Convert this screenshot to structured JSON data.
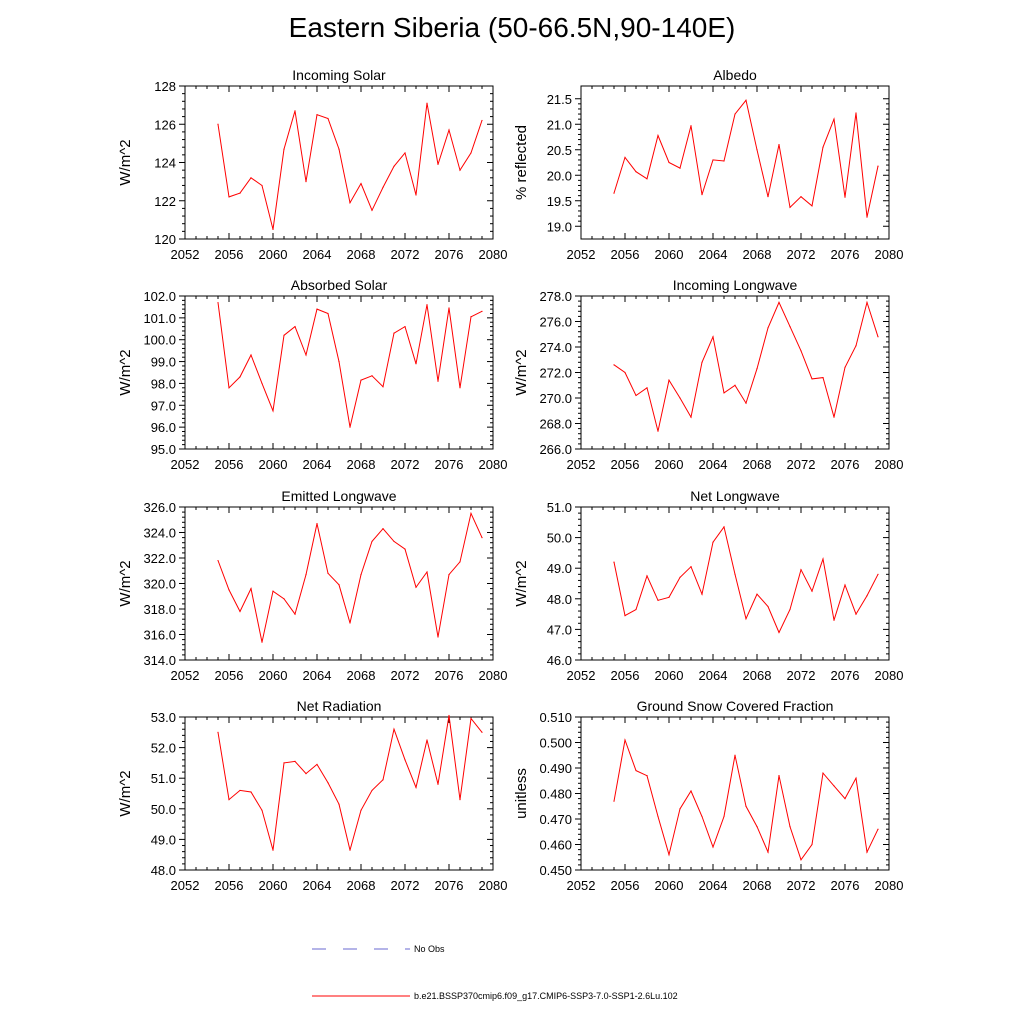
{
  "title": "Eastern Siberia (50-66.5N,90-140E)",
  "colors": {
    "model_line": "#ff0000",
    "obs_line": "#6a6ad0",
    "axis": "#000000"
  },
  "legend": [
    {
      "label": "No Obs",
      "style": "dashed",
      "color": "#6a6ad0"
    },
    {
      "label": "b.e21.BSSP370cmip6.f09_g17.CMIP6-SSP3-7.0-SSP1-2.6Lu.102",
      "style": "solid",
      "color": "#ff0000"
    }
  ],
  "chart_data": [
    {
      "type": "line",
      "title": "Incoming Solar",
      "ylabel": "W/m^2",
      "xlim": [
        2052,
        2080
      ],
      "ylim": [
        120,
        128
      ],
      "xticks": [
        2052,
        2056,
        2060,
        2064,
        2068,
        2072,
        2076,
        2080
      ],
      "yticks": [
        120,
        122,
        124,
        126,
        128
      ],
      "ytick_labels": [
        "120",
        "122",
        "124",
        "126",
        "128"
      ],
      "x": [
        2055,
        2056,
        2057,
        2058,
        2059,
        2060,
        2061,
        2062,
        2063,
        2064,
        2065,
        2066,
        2067,
        2068,
        2069,
        2070,
        2071,
        2072,
        2073,
        2074,
        2075,
        2076,
        2077,
        2078,
        2079
      ],
      "series": [
        {
          "values": [
            126.0,
            122.2,
            122.4,
            123.2,
            122.8,
            120.5,
            124.7,
            126.7,
            123.0,
            126.5,
            126.3,
            124.7,
            121.9,
            122.9,
            121.5,
            122.7,
            123.8,
            124.5,
            122.3,
            127.1,
            123.9,
            125.7,
            123.6,
            124.5,
            126.2
          ]
        }
      ]
    },
    {
      "type": "line",
      "title": "Albedo",
      "ylabel": "% reflected",
      "xlim": [
        2052,
        2080
      ],
      "ylim": [
        18.75,
        21.75
      ],
      "xticks": [
        2052,
        2056,
        2060,
        2064,
        2068,
        2072,
        2076,
        2080
      ],
      "yticks": [
        19.0,
        19.5,
        20.0,
        20.5,
        21.0,
        21.5
      ],
      "ytick_labels": [
        "19.0",
        "19.5",
        "20.0",
        "20.5",
        "21.0",
        "21.5"
      ],
      "x": [
        2055,
        2056,
        2057,
        2058,
        2059,
        2060,
        2061,
        2062,
        2063,
        2064,
        2065,
        2066,
        2067,
        2068,
        2069,
        2070,
        2071,
        2072,
        2073,
        2074,
        2075,
        2076,
        2077,
        2078,
        2079
      ],
      "series": [
        {
          "values": [
            19.65,
            20.35,
            20.07,
            19.93,
            20.78,
            20.25,
            20.14,
            20.97,
            19.62,
            20.3,
            20.28,
            21.2,
            21.47,
            20.5,
            19.58,
            20.6,
            19.37,
            19.58,
            19.4,
            20.55,
            21.1,
            19.57,
            21.22,
            19.18,
            20.18
          ]
        }
      ]
    },
    {
      "type": "line",
      "title": "Absorbed Solar",
      "ylabel": "W/m^2",
      "xlim": [
        2052,
        2080
      ],
      "ylim": [
        95,
        102
      ],
      "xticks": [
        2052,
        2056,
        2060,
        2064,
        2068,
        2072,
        2076,
        2080
      ],
      "yticks": [
        95,
        96,
        97,
        98,
        99,
        100,
        101,
        102
      ],
      "ytick_labels": [
        "95.0",
        "96.0",
        "97.0",
        "98.0",
        "99.0",
        "100.0",
        "101.0",
        "102.0"
      ],
      "x": [
        2055,
        2056,
        2057,
        2058,
        2059,
        2060,
        2061,
        2062,
        2063,
        2064,
        2065,
        2066,
        2067,
        2068,
        2069,
        2070,
        2071,
        2072,
        2073,
        2074,
        2075,
        2076,
        2077,
        2078,
        2079
      ],
      "series": [
        {
          "values": [
            101.7,
            97.8,
            98.3,
            99.3,
            98.0,
            96.75,
            100.2,
            100.6,
            99.3,
            101.4,
            101.2,
            99.0,
            96.0,
            98.15,
            98.35,
            97.85,
            100.3,
            100.6,
            98.9,
            101.6,
            98.1,
            101.45,
            97.8,
            101.05,
            101.3
          ]
        }
      ]
    },
    {
      "type": "line",
      "title": "Incoming Longwave",
      "ylabel": "W/m^2",
      "xlim": [
        2052,
        2080
      ],
      "ylim": [
        266,
        278
      ],
      "xticks": [
        2052,
        2056,
        2060,
        2064,
        2068,
        2072,
        2076,
        2080
      ],
      "yticks": [
        266,
        268,
        270,
        272,
        274,
        276,
        278
      ],
      "ytick_labels": [
        "266.0",
        "268.0",
        "270.0",
        "272.0",
        "274.0",
        "276.0",
        "278.0"
      ],
      "x": [
        2055,
        2056,
        2057,
        2058,
        2059,
        2060,
        2061,
        2062,
        2063,
        2064,
        2065,
        2066,
        2067,
        2068,
        2069,
        2070,
        2071,
        2072,
        2073,
        2074,
        2075,
        2076,
        2077,
        2078,
        2079
      ],
      "series": [
        {
          "values": [
            272.6,
            272.0,
            270.2,
            270.8,
            267.4,
            271.4,
            270.0,
            268.5,
            272.8,
            274.8,
            270.4,
            271.0,
            269.6,
            272.3,
            275.5,
            277.5,
            275.6,
            273.7,
            271.5,
            271.6,
            268.5,
            272.4,
            274.1,
            277.5,
            274.8
          ]
        }
      ]
    },
    {
      "type": "line",
      "title": "Emitted Longwave",
      "ylabel": "W/m^2",
      "xlim": [
        2052,
        2080
      ],
      "ylim": [
        314,
        326
      ],
      "xticks": [
        2052,
        2056,
        2060,
        2064,
        2068,
        2072,
        2076,
        2080
      ],
      "yticks": [
        314,
        316,
        318,
        320,
        322,
        324,
        326
      ],
      "ytick_labels": [
        "314.0",
        "316.0",
        "318.0",
        "320.0",
        "322.0",
        "324.0",
        "326.0"
      ],
      "x": [
        2055,
        2056,
        2057,
        2058,
        2059,
        2060,
        2061,
        2062,
        2063,
        2064,
        2065,
        2066,
        2067,
        2068,
        2069,
        2070,
        2071,
        2072,
        2073,
        2074,
        2075,
        2076,
        2077,
        2078,
        2079
      ],
      "series": [
        {
          "values": [
            321.8,
            319.5,
            317.8,
            319.6,
            315.4,
            319.4,
            318.8,
            317.6,
            320.7,
            324.7,
            320.8,
            319.9,
            316.9,
            320.7,
            323.3,
            324.3,
            323.3,
            322.7,
            319.7,
            320.9,
            315.8,
            320.7,
            321.7,
            325.5,
            323.6
          ]
        }
      ]
    },
    {
      "type": "line",
      "title": "Net Longwave",
      "ylabel": "W/m^2",
      "xlim": [
        2052,
        2080
      ],
      "ylim": [
        46,
        51
      ],
      "xticks": [
        2052,
        2056,
        2060,
        2064,
        2068,
        2072,
        2076,
        2080
      ],
      "yticks": [
        46,
        47,
        48,
        49,
        50,
        51
      ],
      "ytick_labels": [
        "46.0",
        "47.0",
        "48.0",
        "49.0",
        "50.0",
        "51.0"
      ],
      "x": [
        2055,
        2056,
        2057,
        2058,
        2059,
        2060,
        2061,
        2062,
        2063,
        2064,
        2065,
        2066,
        2067,
        2068,
        2069,
        2070,
        2071,
        2072,
        2073,
        2074,
        2075,
        2076,
        2077,
        2078,
        2079
      ],
      "series": [
        {
          "values": [
            49.2,
            47.45,
            47.65,
            48.75,
            47.95,
            48.05,
            48.7,
            49.05,
            48.15,
            49.85,
            50.35,
            48.8,
            47.35,
            48.15,
            47.75,
            46.9,
            47.65,
            48.95,
            48.25,
            49.3,
            47.3,
            48.45,
            47.5,
            48.1,
            48.8
          ]
        }
      ]
    },
    {
      "type": "line",
      "title": "Net Radiation",
      "ylabel": "W/m^2",
      "xlim": [
        2052,
        2080
      ],
      "ylim": [
        48,
        53
      ],
      "xticks": [
        2052,
        2056,
        2060,
        2064,
        2068,
        2072,
        2076,
        2080
      ],
      "yticks": [
        48,
        49,
        50,
        51,
        52,
        53
      ],
      "ytick_labels": [
        "48.0",
        "49.0",
        "50.0",
        "51.0",
        "52.0",
        "53.0"
      ],
      "x": [
        2055,
        2056,
        2057,
        2058,
        2059,
        2060,
        2061,
        2062,
        2063,
        2064,
        2065,
        2066,
        2067,
        2068,
        2069,
        2070,
        2071,
        2072,
        2073,
        2074,
        2075,
        2076,
        2077,
        2078,
        2079
      ],
      "series": [
        {
          "values": [
            52.5,
            50.3,
            50.6,
            50.55,
            49.95,
            48.65,
            51.5,
            51.55,
            51.15,
            51.45,
            50.85,
            50.15,
            48.65,
            49.95,
            50.6,
            50.95,
            52.6,
            51.6,
            50.7,
            52.25,
            50.8,
            53.05,
            50.3,
            52.95,
            52.5
          ]
        }
      ]
    },
    {
      "type": "line",
      "title": "Ground Snow Covered Fraction",
      "ylabel": "unitless",
      "xlim": [
        2052,
        2080
      ],
      "ylim": [
        0.45,
        0.51
      ],
      "xticks": [
        2052,
        2056,
        2060,
        2064,
        2068,
        2072,
        2076,
        2080
      ],
      "yticks": [
        0.45,
        0.46,
        0.47,
        0.48,
        0.49,
        0.5,
        0.51
      ],
      "ytick_labels": [
        "0.450",
        "0.460",
        "0.470",
        "0.480",
        "0.490",
        "0.500",
        "0.510"
      ],
      "x": [
        2055,
        2056,
        2057,
        2058,
        2059,
        2060,
        2061,
        2062,
        2063,
        2064,
        2065,
        2066,
        2067,
        2068,
        2069,
        2070,
        2071,
        2072,
        2073,
        2074,
        2075,
        2076,
        2077,
        2078,
        2079
      ],
      "series": [
        {
          "values": [
            0.477,
            0.501,
            0.489,
            0.487,
            0.471,
            0.456,
            0.474,
            0.481,
            0.471,
            0.459,
            0.471,
            0.495,
            0.475,
            0.467,
            0.457,
            0.487,
            0.467,
            0.454,
            0.46,
            0.488,
            0.483,
            0.478,
            0.486,
            0.457,
            0.466
          ]
        }
      ]
    }
  ]
}
